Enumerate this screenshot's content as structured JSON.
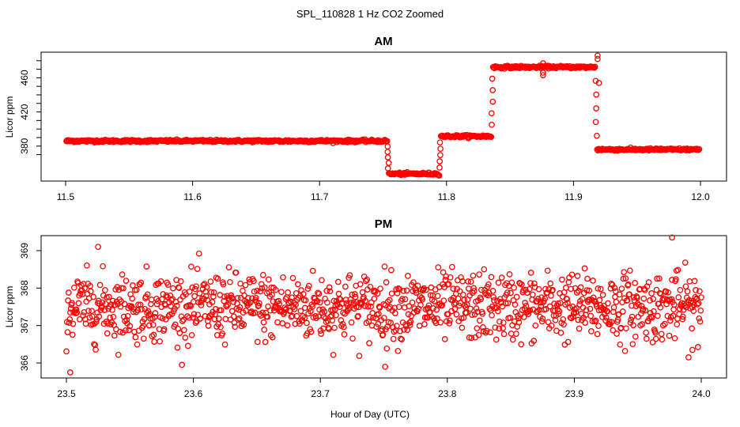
{
  "title": "SPL_110828  1 Hz CO2 Zoomed",
  "xlabel": "Hour of Day (UTC)",
  "colors": {
    "points": "#ff0000",
    "axes": "#000000",
    "background": "#ffffff"
  },
  "chart_data": [
    {
      "type": "scatter",
      "title": "AM",
      "xlabel": "Hour of Day (UTC)",
      "ylabel": "Licor ppm",
      "xlim": [
        11.5,
        12.0
      ],
      "ylim": [
        339,
        490
      ],
      "xticks": [
        11.5,
        11.6,
        11.7,
        11.8,
        11.9,
        12.0
      ],
      "xtick_labels": [
        "11.5",
        "11.6",
        "11.7",
        "11.8",
        "11.9",
        "12.0"
      ],
      "yticks": [
        380,
        420,
        460
      ],
      "ytick_labels": [
        "380",
        "420",
        "460"
      ],
      "grid": false,
      "segments": [
        {
          "x_start": 11.5,
          "x_end": 11.754,
          "y": 386.0
        },
        {
          "x_start": 11.754,
          "x_end": 11.795,
          "y": 347.5
        },
        {
          "x_start": 11.795,
          "x_end": 11.836,
          "y": 391.5
        },
        {
          "x_start": 11.836,
          "x_end": 11.918,
          "y": 472.5
        },
        {
          "x_start": 11.918,
          "x_end": 12.0,
          "y": 376.0
        }
      ],
      "transitions": [
        {
          "x": 11.754,
          "from": 386.0,
          "to": 347.5
        },
        {
          "x": 11.795,
          "from": 347.5,
          "to": 391.5
        },
        {
          "x": 11.836,
          "from": 391.5,
          "to": 472.5
        },
        {
          "x": 11.918,
          "from": 472.5,
          "to": 376.0
        }
      ],
      "outliers": [
        {
          "x": 11.876,
          "y": 463
        },
        {
          "x": 11.876,
          "y": 466
        },
        {
          "x": 11.876,
          "y": 477
        },
        {
          "x": 11.919,
          "y": 486
        },
        {
          "x": 11.919,
          "y": 482
        },
        {
          "x": 11.92,
          "y": 454
        }
      ]
    },
    {
      "type": "scatter",
      "title": "PM",
      "xlabel": "Hour of Day (UTC)",
      "ylabel": "Licor ppm",
      "xlim": [
        23.5,
        24.0
      ],
      "ylim": [
        365.6,
        369.4
      ],
      "xticks": [
        23.5,
        23.6,
        23.7,
        23.8,
        23.9,
        24.0
      ],
      "xtick_labels": [
        "23.5",
        "23.6",
        "23.7",
        "23.8",
        "23.9",
        "24.0"
      ],
      "yticks": [
        366,
        367,
        368,
        369
      ],
      "ytick_labels": [
        "366",
        "367",
        "368",
        "369"
      ],
      "grid": false,
      "mean": 367.5,
      "spread": 0.45,
      "n_points": 1150,
      "notable_points": [
        {
          "x": 23.503,
          "y": 365.75
        },
        {
          "x": 23.525,
          "y": 369.1
        },
        {
          "x": 23.751,
          "y": 365.9
        },
        {
          "x": 23.977,
          "y": 369.35
        },
        {
          "x": 23.993,
          "y": 366.35
        }
      ]
    }
  ]
}
